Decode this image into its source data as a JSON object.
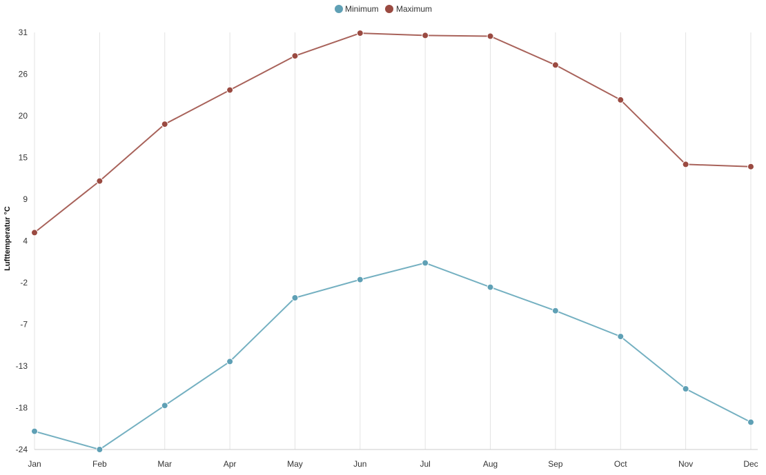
{
  "chart_data": {
    "type": "line",
    "ylabel": "Lufttemperatur °C",
    "categories": [
      "Jan",
      "Feb",
      "Mar",
      "Apr",
      "May",
      "Jun",
      "Jul",
      "Aug",
      "Sep",
      "Oct",
      "Nov",
      "Dec"
    ],
    "y_ticks": [
      "31",
      "26",
      "20",
      "15",
      "9",
      "4",
      "-2",
      "-7",
      "-13",
      "-18",
      "-24"
    ],
    "ylim": [
      -24,
      31
    ],
    "grid": "vertical",
    "legend_position": "top-center",
    "series": [
      {
        "name": "Minimum",
        "color": "#5fa0b5",
        "line_color": "#74b0c1",
        "values": [
          -21.6,
          -24.0,
          -18.2,
          -12.4,
          -4.0,
          -1.6,
          0.6,
          -2.6,
          -5.7,
          -9.1,
          -16.0,
          -20.4
        ]
      },
      {
        "name": "Maximum",
        "color": "#9a4a41",
        "line_color": "#a8625a",
        "values": [
          4.6,
          11.4,
          18.9,
          23.4,
          27.9,
          30.9,
          30.6,
          30.5,
          26.7,
          22.1,
          13.6,
          13.3
        ]
      }
    ]
  }
}
